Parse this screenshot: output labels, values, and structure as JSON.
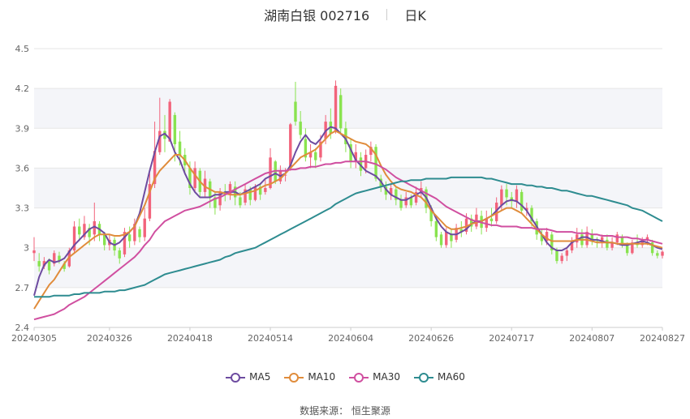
{
  "header": {
    "title": "湖南白银 002716",
    "period": "日K"
  },
  "legend": [
    {
      "name": "MA5",
      "color": "#6d4ba0"
    },
    {
      "name": "MA10",
      "color": "#e08c3b"
    },
    {
      "name": "MA30",
      "color": "#d04fa0"
    },
    {
      "name": "MA60",
      "color": "#2e8c90"
    }
  ],
  "source": {
    "label": "数据来源：",
    "value": "恒生聚源"
  },
  "colors": {
    "up": "#f2637b",
    "down": "#89e34f",
    "grid": "#e6e6e6",
    "band": "#f4f5f9",
    "axis_text": "#666666"
  },
  "chart_data": {
    "type": "candlestick",
    "title": "湖南白银 002716 日K",
    "ylim": [
      2.4,
      4.5
    ],
    "yticks": [
      "2.4",
      "2.7",
      "3",
      "3.3",
      "3.6",
      "3.9",
      "4.2",
      "4.5"
    ],
    "xticks": [
      {
        "label": "20240305",
        "index": 0
      },
      {
        "label": "20240326",
        "index": 15
      },
      {
        "label": "20240418",
        "index": 31
      },
      {
        "label": "20240514",
        "index": 47
      },
      {
        "label": "20240604",
        "index": 63
      },
      {
        "label": "20240626",
        "index": 79
      },
      {
        "label": "20240717",
        "index": 95
      },
      {
        "label": "20240807",
        "index": 111
      },
      {
        "label": "20240827",
        "index": 125
      }
    ],
    "grid": true,
    "legend_position": "bottom",
    "candles": [
      [
        2.96,
        2.98,
        3.08,
        2.9
      ],
      [
        2.9,
        2.86,
        2.96,
        2.82
      ],
      [
        2.86,
        2.9,
        2.93,
        2.84
      ],
      [
        2.9,
        2.83,
        2.92,
        2.8
      ],
      [
        2.88,
        2.96,
        2.98,
        2.86
      ],
      [
        2.94,
        2.9,
        2.97,
        2.88
      ],
      [
        2.88,
        2.84,
        2.9,
        2.82
      ],
      [
        2.86,
        2.98,
        3.0,
        2.85
      ],
      [
        2.98,
        3.16,
        3.2,
        2.96
      ],
      [
        3.16,
        3.1,
        3.22,
        3.05
      ],
      [
        3.08,
        3.18,
        3.24,
        3.06
      ],
      [
        3.15,
        3.08,
        3.18,
        3.02
      ],
      [
        3.1,
        3.2,
        3.34,
        3.05
      ],
      [
        3.18,
        3.1,
        3.2,
        3.05
      ],
      [
        3.1,
        3.02,
        3.12,
        2.98
      ],
      [
        3.02,
        3.06,
        3.1,
        2.98
      ],
      [
        3.06,
        2.98,
        3.08,
        2.94
      ],
      [
        2.98,
        2.92,
        3.0,
        2.88
      ],
      [
        2.95,
        3.12,
        3.15,
        2.93
      ],
      [
        3.1,
        3.05,
        3.16,
        3.0
      ],
      [
        3.05,
        3.18,
        3.22,
        3.02
      ],
      [
        3.14,
        3.08,
        3.16,
        3.04
      ],
      [
        3.08,
        3.22,
        3.3,
        3.05
      ],
      [
        3.22,
        3.48,
        3.56,
        3.2
      ],
      [
        3.48,
        3.73,
        3.95,
        3.45
      ],
      [
        3.72,
        3.88,
        4.13,
        3.7
      ],
      [
        3.88,
        3.82,
        4.0,
        3.72
      ],
      [
        3.8,
        4.1,
        4.12,
        3.8
      ],
      [
        4.0,
        3.78,
        4.02,
        3.65
      ],
      [
        3.8,
        3.7,
        3.88,
        3.62
      ],
      [
        3.7,
        3.62,
        3.75,
        3.55
      ],
      [
        3.6,
        3.45,
        3.65,
        3.4
      ],
      [
        3.45,
        3.6,
        3.65,
        3.42
      ],
      [
        3.58,
        3.42,
        3.6,
        3.38
      ],
      [
        3.42,
        3.52,
        3.58,
        3.38
      ],
      [
        3.5,
        3.38,
        3.52,
        3.3
      ],
      [
        3.38,
        3.3,
        3.42,
        3.25
      ],
      [
        3.32,
        3.42,
        3.45,
        3.28
      ],
      [
        3.42,
        3.4,
        3.48,
        3.35
      ],
      [
        3.4,
        3.48,
        3.5,
        3.36
      ],
      [
        3.46,
        3.38,
        3.5,
        3.32
      ],
      [
        3.38,
        3.32,
        3.42,
        3.3
      ],
      [
        3.34,
        3.44,
        3.48,
        3.32
      ],
      [
        3.44,
        3.36,
        3.46,
        3.32
      ],
      [
        3.36,
        3.46,
        3.48,
        3.35
      ],
      [
        3.46,
        3.4,
        3.48,
        3.36
      ],
      [
        3.42,
        3.45,
        3.52,
        3.4
      ],
      [
        3.45,
        3.68,
        3.75,
        3.44
      ],
      [
        3.65,
        3.5,
        3.66,
        3.48
      ],
      [
        3.5,
        3.58,
        3.62,
        3.48
      ],
      [
        3.55,
        3.55,
        3.6,
        3.5
      ],
      [
        3.6,
        3.93,
        3.94,
        3.58
      ],
      [
        4.1,
        3.95,
        4.25,
        3.92
      ],
      [
        3.95,
        3.85,
        4.03,
        3.82
      ],
      [
        3.82,
        3.68,
        3.9,
        3.65
      ],
      [
        3.68,
        3.72,
        3.78,
        3.6
      ],
      [
        3.72,
        3.66,
        3.75,
        3.6
      ],
      [
        3.68,
        3.8,
        3.85,
        3.65
      ],
      [
        3.82,
        3.95,
        4.0,
        3.78
      ],
      [
        3.95,
        3.86,
        4.05,
        3.82
      ],
      [
        3.88,
        4.22,
        4.26,
        3.86
      ],
      [
        4.15,
        3.9,
        4.2,
        3.85
      ],
      [
        3.9,
        3.78,
        3.95,
        3.72
      ],
      [
        3.78,
        3.65,
        3.82,
        3.6
      ],
      [
        3.65,
        3.72,
        3.78,
        3.6
      ],
      [
        3.68,
        3.58,
        3.72,
        3.54
      ],
      [
        3.6,
        3.7,
        3.74,
        3.56
      ],
      [
        3.7,
        3.76,
        3.8,
        3.65
      ],
      [
        3.76,
        3.52,
        3.78,
        3.5
      ],
      [
        3.52,
        3.46,
        3.55,
        3.42
      ],
      [
        3.46,
        3.4,
        3.5,
        3.36
      ],
      [
        3.4,
        3.45,
        3.48,
        3.36
      ],
      [
        3.44,
        3.36,
        3.46,
        3.32
      ],
      [
        3.36,
        3.3,
        3.4,
        3.28
      ],
      [
        3.32,
        3.38,
        3.42,
        3.3
      ],
      [
        3.38,
        3.32,
        3.4,
        3.3
      ],
      [
        3.34,
        3.42,
        3.46,
        3.32
      ],
      [
        3.42,
        3.45,
        3.5,
        3.38
      ],
      [
        3.44,
        3.3,
        3.46,
        3.26
      ],
      [
        3.3,
        3.2,
        3.32,
        3.16
      ],
      [
        3.2,
        3.08,
        3.22,
        3.05
      ],
      [
        3.1,
        3.02,
        3.12,
        3.0
      ],
      [
        3.02,
        3.12,
        3.15,
        3.0
      ],
      [
        3.1,
        3.05,
        3.14,
        3.0
      ],
      [
        3.06,
        3.15,
        3.18,
        3.04
      ],
      [
        3.14,
        3.12,
        3.2,
        3.08
      ],
      [
        3.12,
        3.22,
        3.26,
        3.1
      ],
      [
        3.22,
        3.16,
        3.25,
        3.12
      ],
      [
        3.16,
        3.25,
        3.3,
        3.14
      ],
      [
        3.24,
        3.15,
        3.28,
        3.1
      ],
      [
        3.15,
        3.22,
        3.28,
        3.12
      ],
      [
        3.22,
        3.2,
        3.3,
        3.16
      ],
      [
        3.2,
        3.34,
        3.38,
        3.18
      ],
      [
        3.32,
        3.44,
        3.47,
        3.28
      ],
      [
        3.44,
        3.38,
        3.48,
        3.32
      ],
      [
        3.38,
        3.35,
        3.42,
        3.3
      ],
      [
        3.35,
        3.44,
        3.47,
        3.3
      ],
      [
        3.42,
        3.28,
        3.44,
        3.26
      ],
      [
        3.28,
        3.3,
        3.34,
        3.24
      ],
      [
        3.3,
        3.2,
        3.32,
        3.16
      ],
      [
        3.2,
        3.1,
        3.22,
        3.06
      ],
      [
        3.1,
        3.05,
        3.14,
        3.02
      ],
      [
        3.05,
        3.12,
        3.15,
        3.02
      ],
      [
        3.1,
        2.98,
        3.12,
        2.95
      ],
      [
        2.98,
        2.9,
        3.0,
        2.88
      ],
      [
        2.9,
        2.94,
        2.96,
        2.88
      ],
      [
        2.94,
        2.98,
        3.0,
        2.9
      ],
      [
        2.98,
        3.05,
        3.08,
        2.96
      ],
      [
        3.04,
        3.1,
        3.15,
        3.0
      ],
      [
        3.1,
        3.02,
        3.14,
        3.0
      ],
      [
        3.02,
        3.12,
        3.16,
        3.0
      ],
      [
        3.1,
        3.05,
        3.14,
        3.02
      ],
      [
        3.05,
        3.04,
        3.08,
        3.0
      ],
      [
        3.04,
        3.08,
        3.1,
        3.0
      ],
      [
        3.06,
        3.0,
        3.1,
        2.98
      ],
      [
        3.0,
        3.04,
        3.08,
        2.98
      ],
      [
        3.04,
        3.1,
        3.12,
        3.02
      ],
      [
        3.08,
        3.02,
        3.1,
        3.0
      ],
      [
        3.02,
        2.96,
        3.04,
        2.94
      ],
      [
        2.96,
        3.04,
        3.06,
        2.95
      ],
      [
        3.04,
        3.02,
        3.1,
        3.0
      ],
      [
        3.02,
        3.06,
        3.08,
        3.0
      ],
      [
        3.06,
        3.08,
        3.1,
        3.02
      ],
      [
        3.04,
        2.96,
        3.06,
        2.94
      ],
      [
        2.96,
        2.94,
        2.98,
        2.92
      ],
      [
        2.94,
        2.97,
        2.98,
        2.92
      ]
    ],
    "series": [
      {
        "name": "MA5",
        "values": [
          2.64,
          2.78,
          2.87,
          2.91,
          2.89,
          2.9,
          2.92,
          2.97,
          3.02,
          3.06,
          3.1,
          3.14,
          3.16,
          3.14,
          3.11,
          3.04,
          3.02,
          3.04,
          3.08,
          3.12,
          3.16,
          3.26,
          3.42,
          3.58,
          3.72,
          3.84,
          3.86,
          3.82,
          3.72,
          3.66,
          3.56,
          3.48,
          3.42,
          3.38,
          3.38,
          3.38,
          3.4,
          3.4,
          3.42,
          3.42,
          3.42,
          3.4,
          3.42,
          3.44,
          3.46,
          3.48,
          3.52,
          3.54,
          3.56,
          3.54,
          3.56,
          3.62,
          3.72,
          3.8,
          3.85,
          3.8,
          3.78,
          3.82,
          3.88,
          3.91,
          3.9,
          3.86,
          3.82,
          3.74,
          3.66,
          3.62,
          3.58,
          3.56,
          3.54,
          3.5,
          3.44,
          3.4,
          3.38,
          3.36,
          3.36,
          3.38,
          3.4,
          3.42,
          3.38,
          3.3,
          3.22,
          3.16,
          3.12,
          3.1,
          3.1,
          3.12,
          3.14,
          3.18,
          3.2,
          3.2,
          3.22,
          3.24,
          3.28,
          3.32,
          3.35,
          3.36,
          3.35,
          3.32,
          3.28,
          3.22,
          3.16,
          3.1,
          3.04,
          3.0,
          2.98,
          2.98,
          3.0,
          3.04,
          3.06,
          3.08,
          3.08,
          3.06,
          3.06,
          3.05,
          3.04,
          3.04,
          3.03,
          3.02,
          3.02,
          3.03,
          3.04,
          3.05,
          3.04,
          3.02,
          3.0,
          2.99
        ]
      },
      {
        "name": "MA10",
        "values": [
          2.54,
          2.6,
          2.66,
          2.72,
          2.76,
          2.82,
          2.88,
          2.93,
          2.96,
          2.99,
          3.02,
          3.05,
          3.08,
          3.1,
          3.1,
          3.1,
          3.09,
          3.09,
          3.1,
          3.12,
          3.16,
          3.24,
          3.32,
          3.42,
          3.52,
          3.58,
          3.62,
          3.66,
          3.7,
          3.7,
          3.66,
          3.6,
          3.55,
          3.5,
          3.46,
          3.44,
          3.42,
          3.42,
          3.41,
          3.4,
          3.4,
          3.4,
          3.41,
          3.42,
          3.43,
          3.45,
          3.47,
          3.48,
          3.5,
          3.52,
          3.56,
          3.6,
          3.64,
          3.68,
          3.7,
          3.72,
          3.74,
          3.78,
          3.82,
          3.86,
          3.88,
          3.86,
          3.84,
          3.82,
          3.8,
          3.79,
          3.78,
          3.75,
          3.7,
          3.62,
          3.55,
          3.5,
          3.46,
          3.44,
          3.43,
          3.42,
          3.4,
          3.38,
          3.34,
          3.28,
          3.24,
          3.2,
          3.16,
          3.14,
          3.14,
          3.15,
          3.16,
          3.18,
          3.19,
          3.2,
          3.22,
          3.24,
          3.26,
          3.28,
          3.3,
          3.3,
          3.28,
          3.26,
          3.22,
          3.18,
          3.14,
          3.1,
          3.07,
          3.05,
          3.05,
          3.05,
          3.05,
          3.05,
          3.06,
          3.06,
          3.06,
          3.05,
          3.04,
          3.04,
          3.04,
          3.04,
          3.03,
          3.03,
          3.03,
          3.03,
          3.03,
          3.03,
          3.03,
          3.02,
          3.01,
          3.0
        ]
      },
      {
        "name": "MA30",
        "values": [
          2.46,
          2.47,
          2.48,
          2.49,
          2.5,
          2.52,
          2.54,
          2.57,
          2.59,
          2.61,
          2.63,
          2.66,
          2.69,
          2.72,
          2.75,
          2.78,
          2.81,
          2.84,
          2.87,
          2.9,
          2.93,
          2.97,
          3.02,
          3.06,
          3.12,
          3.16,
          3.2,
          3.22,
          3.24,
          3.26,
          3.28,
          3.29,
          3.3,
          3.31,
          3.33,
          3.35,
          3.37,
          3.38,
          3.4,
          3.42,
          3.44,
          3.46,
          3.48,
          3.5,
          3.52,
          3.54,
          3.56,
          3.57,
          3.58,
          3.58,
          3.58,
          3.59,
          3.59,
          3.6,
          3.6,
          3.61,
          3.61,
          3.62,
          3.63,
          3.63,
          3.64,
          3.64,
          3.65,
          3.65,
          3.65,
          3.65,
          3.65,
          3.64,
          3.63,
          3.61,
          3.59,
          3.56,
          3.53,
          3.51,
          3.49,
          3.47,
          3.45,
          3.43,
          3.41,
          3.39,
          3.37,
          3.34,
          3.31,
          3.29,
          3.27,
          3.25,
          3.23,
          3.21,
          3.2,
          3.19,
          3.18,
          3.17,
          3.17,
          3.16,
          3.16,
          3.16,
          3.16,
          3.15,
          3.15,
          3.15,
          3.14,
          3.14,
          3.14,
          3.13,
          3.12,
          3.12,
          3.12,
          3.12,
          3.11,
          3.11,
          3.11,
          3.1,
          3.1,
          3.09,
          3.09,
          3.09,
          3.08,
          3.08,
          3.08,
          3.07,
          3.07,
          3.06,
          3.06,
          3.05,
          3.04,
          3.03
        ]
      },
      {
        "name": "MA60",
        "values": [
          2.63,
          2.63,
          2.63,
          2.63,
          2.64,
          2.64,
          2.64,
          2.64,
          2.65,
          2.65,
          2.66,
          2.66,
          2.66,
          2.66,
          2.67,
          2.67,
          2.67,
          2.68,
          2.68,
          2.69,
          2.7,
          2.71,
          2.72,
          2.74,
          2.76,
          2.78,
          2.8,
          2.81,
          2.82,
          2.83,
          2.84,
          2.85,
          2.86,
          2.87,
          2.88,
          2.89,
          2.9,
          2.91,
          2.93,
          2.94,
          2.96,
          2.97,
          2.98,
          2.99,
          3.0,
          3.02,
          3.04,
          3.06,
          3.08,
          3.1,
          3.12,
          3.14,
          3.16,
          3.18,
          3.2,
          3.22,
          3.24,
          3.26,
          3.28,
          3.3,
          3.33,
          3.35,
          3.37,
          3.39,
          3.41,
          3.42,
          3.43,
          3.44,
          3.45,
          3.46,
          3.47,
          3.48,
          3.49,
          3.5,
          3.5,
          3.51,
          3.51,
          3.51,
          3.52,
          3.52,
          3.52,
          3.52,
          3.52,
          3.53,
          3.53,
          3.53,
          3.53,
          3.53,
          3.53,
          3.53,
          3.52,
          3.52,
          3.51,
          3.5,
          3.49,
          3.48,
          3.48,
          3.48,
          3.47,
          3.47,
          3.46,
          3.46,
          3.45,
          3.45,
          3.44,
          3.43,
          3.43,
          3.42,
          3.41,
          3.4,
          3.39,
          3.39,
          3.38,
          3.37,
          3.36,
          3.35,
          3.34,
          3.33,
          3.32,
          3.3,
          3.29,
          3.28,
          3.26,
          3.24,
          3.22,
          3.2
        ]
      }
    ]
  }
}
